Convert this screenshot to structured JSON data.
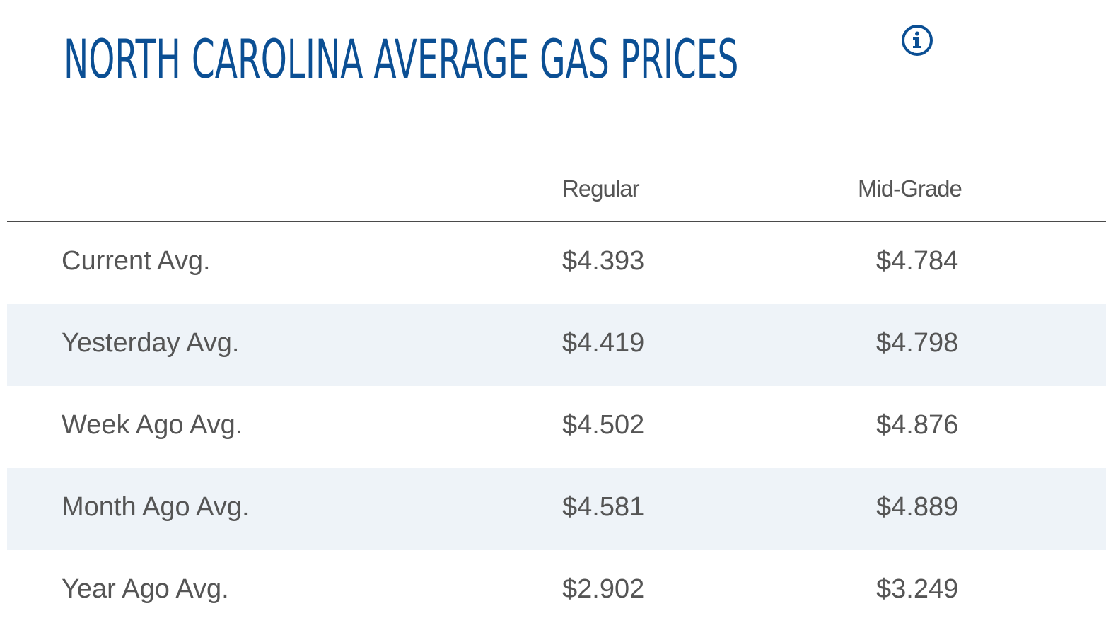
{
  "header": {
    "title": "NORTH CAROLINA AVERAGE GAS PRICES",
    "info_icon": "info-circle-icon"
  },
  "colors": {
    "title": "#0b4f94",
    "text": "#555555",
    "row_shade": "#eef3f8",
    "rule": "#4a4a4a"
  },
  "table": {
    "columns": [
      "",
      "Regular",
      "Mid-Grade"
    ],
    "rows": [
      {
        "label": "Current Avg.",
        "regular": "$4.393",
        "midgrade": "$4.784"
      },
      {
        "label": "Yesterday Avg.",
        "regular": "$4.419",
        "midgrade": "$4.798"
      },
      {
        "label": "Week Ago Avg.",
        "regular": "$4.502",
        "midgrade": "$4.876"
      },
      {
        "label": "Month Ago Avg.",
        "regular": "$4.581",
        "midgrade": "$4.889"
      },
      {
        "label": "Year Ago Avg.",
        "regular": "$2.902",
        "midgrade": "$3.249"
      }
    ]
  }
}
